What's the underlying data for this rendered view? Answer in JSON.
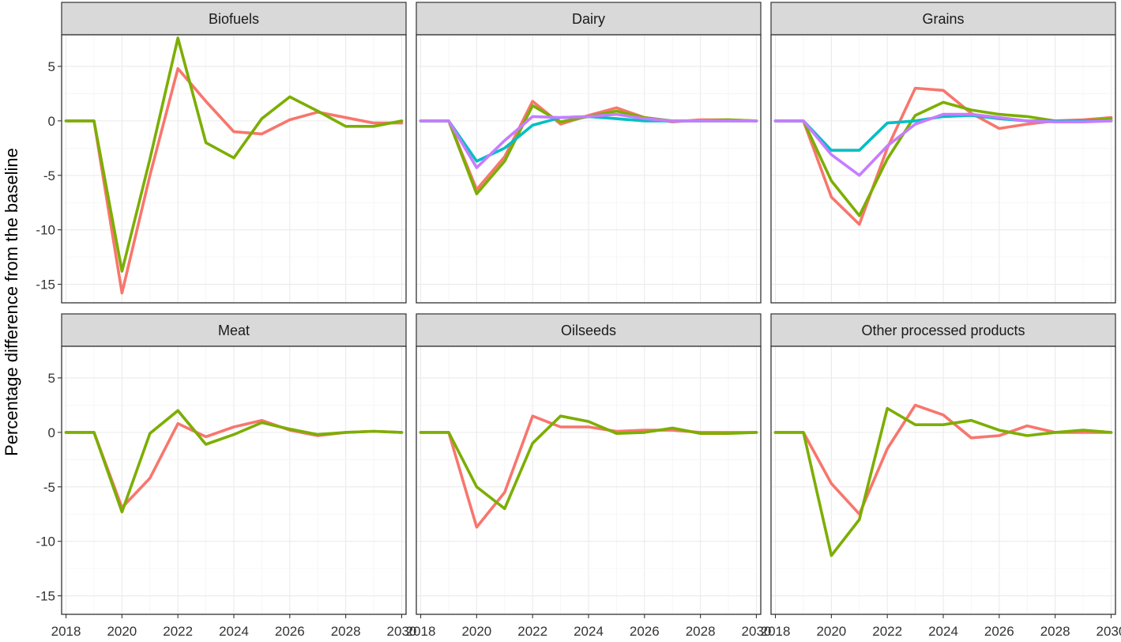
{
  "chart_data": {
    "type": "line",
    "layout": "facet-grid",
    "ylabel": "Percentage difference from the baseline",
    "xlabel": "",
    "x_ticks": [
      "2018",
      "2020",
      "2022",
      "2024",
      "2026",
      "2028",
      "2030"
    ],
    "y_ticks": [
      "5",
      "0",
      "-5",
      "-10",
      "-15"
    ],
    "xlim": [
      2017.9,
      2030.1
    ],
    "ylim": [
      -16.7,
      7.9
    ],
    "grid": true,
    "legend": "none",
    "colors": {
      "red": "#F8766D",
      "green": "#7CAE00",
      "cyan": "#00BFC4",
      "purple": "#C77CFF"
    },
    "x": [
      2018,
      2019,
      2020,
      2021,
      2022,
      2023,
      2024,
      2025,
      2026,
      2027,
      2028,
      2029,
      2030
    ],
    "panels": [
      {
        "title": "Biofuels",
        "series": [
          {
            "color": "red",
            "values": [
              0,
              0,
              -15.8,
              -5,
              4.8,
              1.8,
              -1,
              -1.2,
              0.1,
              0.8,
              0.3,
              -0.2,
              -0.2
            ]
          },
          {
            "color": "green",
            "values": [
              0,
              0,
              -13.8,
              -3.5,
              7.6,
              -2,
              -3.4,
              0.2,
              2.2,
              0.9,
              -0.5,
              -0.5,
              0
            ]
          }
        ]
      },
      {
        "title": "Dairy",
        "series": [
          {
            "color": "red",
            "values": [
              0,
              0,
              -6.3,
              -3.3,
              1.8,
              -0.3,
              0.5,
              1.2,
              0.3,
              -0.1,
              0.1,
              0.1,
              0
            ]
          },
          {
            "color": "green",
            "values": [
              0,
              0,
              -6.7,
              -3.7,
              1.4,
              -0.1,
              0.4,
              0.9,
              0.3,
              0,
              0,
              0.1,
              0
            ]
          },
          {
            "color": "cyan",
            "values": [
              0,
              0,
              -3.7,
              -2.5,
              -0.4,
              0.3,
              0.4,
              0.2,
              0,
              0,
              0,
              0,
              0
            ]
          },
          {
            "color": "purple",
            "values": [
              0,
              0,
              -4.3,
              -1.8,
              0.4,
              0.3,
              0.4,
              0.6,
              0.2,
              0,
              0,
              0,
              0
            ]
          }
        ]
      },
      {
        "title": "Grains",
        "series": [
          {
            "color": "red",
            "values": [
              0,
              0,
              -7,
              -9.5,
              -2.5,
              3,
              2.8,
              0.7,
              -0.7,
              -0.3,
              0,
              0.1,
              0.3
            ]
          },
          {
            "color": "green",
            "values": [
              0,
              0,
              -5.5,
              -8.7,
              -3.5,
              0.5,
              1.7,
              1,
              0.6,
              0.4,
              0,
              0,
              0.2
            ]
          },
          {
            "color": "cyan",
            "values": [
              0,
              0,
              -2.7,
              -2.7,
              -0.2,
              0,
              0.4,
              0.5,
              0.2,
              0,
              0,
              0,
              0
            ]
          },
          {
            "color": "purple",
            "values": [
              0,
              0,
              -3.1,
              -5,
              -2.3,
              -0.3,
              0.6,
              0.6,
              0.3,
              0,
              -0.1,
              -0.1,
              0
            ]
          }
        ]
      },
      {
        "title": "Meat",
        "series": [
          {
            "color": "red",
            "values": [
              0,
              0,
              -6.9,
              -4.2,
              0.8,
              -0.4,
              0.5,
              1.1,
              0.2,
              -0.3,
              0,
              0.1,
              0
            ]
          },
          {
            "color": "green",
            "values": [
              0,
              0,
              -7.3,
              -0.1,
              2,
              -1.1,
              -0.2,
              0.9,
              0.3,
              -0.2,
              0,
              0.1,
              0
            ]
          }
        ]
      },
      {
        "title": "Oilseeds",
        "series": [
          {
            "color": "red",
            "values": [
              0,
              0,
              -8.7,
              -5.5,
              1.5,
              0.5,
              0.5,
              0.1,
              0.2,
              0.2,
              0,
              0,
              0
            ]
          },
          {
            "color": "green",
            "values": [
              0,
              0,
              -5,
              -7,
              -1,
              1.5,
              1,
              -0.1,
              0,
              0.4,
              -0.1,
              -0.1,
              0
            ]
          }
        ]
      },
      {
        "title": "Other processed products",
        "series": [
          {
            "color": "red",
            "values": [
              0,
              0,
              -4.7,
              -7.5,
              -1.5,
              2.5,
              1.6,
              -0.5,
              -0.3,
              0.6,
              0,
              0,
              0
            ]
          },
          {
            "color": "green",
            "values": [
              0,
              0,
              -11.3,
              -8,
              2.2,
              0.7,
              0.7,
              1.1,
              0.2,
              -0.3,
              0,
              0.2,
              0
            ]
          }
        ]
      }
    ]
  }
}
